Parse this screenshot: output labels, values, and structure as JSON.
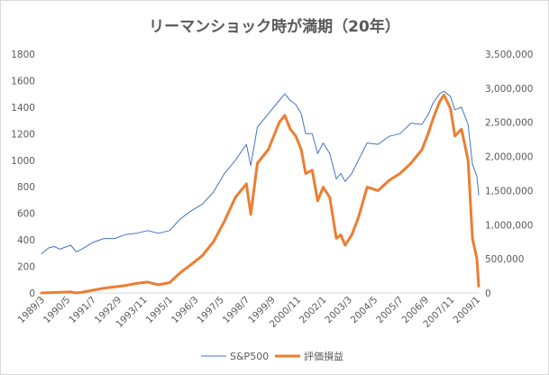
{
  "chart_data": {
    "type": "line",
    "title": "リーマンショック時が満期（20年）",
    "left_axis": {
      "range": [
        0,
        1800
      ],
      "ticks": [
        "0",
        "200",
        "400",
        "600",
        "800",
        "1000",
        "1200",
        "1400",
        "1600",
        "1800"
      ],
      "color": "#4472C4"
    },
    "right_axis": {
      "range": [
        0,
        3500000
      ],
      "ticks": [
        "0",
        "500,000",
        "1,000,000",
        "1,500,000",
        "2,000,000",
        "2,500,000",
        "3,000,000",
        "3,500,000"
      ],
      "color": "#ED7D31"
    },
    "x_range": [
      1989.167,
      2009.083
    ],
    "x_tick_labels": [
      {
        "t": 1989.167,
        "label": "1989/3"
      },
      {
        "t": 1990.333,
        "label": "1990/5"
      },
      {
        "t": 1991.5,
        "label": "1991/7"
      },
      {
        "t": 1992.667,
        "label": "1992/9"
      },
      {
        "t": 1993.833,
        "label": "1993/11"
      },
      {
        "t": 1995.0,
        "label": "1995/1"
      },
      {
        "t": 1996.167,
        "label": "1996/3"
      },
      {
        "t": 1997.333,
        "label": "1997/5"
      },
      {
        "t": 1998.5,
        "label": "1998/7"
      },
      {
        "t": 1999.667,
        "label": "1999/9"
      },
      {
        "t": 2000.833,
        "label": "2000/11"
      },
      {
        "t": 2002.0,
        "label": "2002/1"
      },
      {
        "t": 2003.167,
        "label": "2003/3"
      },
      {
        "t": 2004.333,
        "label": "2004/5"
      },
      {
        "t": 2005.5,
        "label": "2005/7"
      },
      {
        "t": 2006.667,
        "label": "2006/9"
      },
      {
        "t": 2007.833,
        "label": "2007/11"
      },
      {
        "t": 2009.0,
        "label": "2009/1"
      }
    ],
    "grid": false,
    "legend_position": "bottom",
    "series": [
      {
        "name": "S&P500",
        "axis": "left",
        "color": "#4472C4",
        "points": [
          [
            1989.167,
            295
          ],
          [
            1989.5,
            340
          ],
          [
            1989.75,
            350
          ],
          [
            1990.0,
            330
          ],
          [
            1990.5,
            360
          ],
          [
            1990.75,
            310
          ],
          [
            1991.0,
            330
          ],
          [
            1991.5,
            380
          ],
          [
            1992.0,
            410
          ],
          [
            1992.5,
            410
          ],
          [
            1993.0,
            440
          ],
          [
            1993.5,
            450
          ],
          [
            1994.0,
            470
          ],
          [
            1994.5,
            450
          ],
          [
            1995.0,
            470
          ],
          [
            1995.5,
            560
          ],
          [
            1996.0,
            620
          ],
          [
            1996.5,
            670
          ],
          [
            1997.0,
            760
          ],
          [
            1997.5,
            900
          ],
          [
            1998.0,
            1000
          ],
          [
            1998.5,
            1120
          ],
          [
            1998.7,
            960
          ],
          [
            1999.0,
            1250
          ],
          [
            1999.5,
            1350
          ],
          [
            2000.0,
            1450
          ],
          [
            2000.25,
            1500
          ],
          [
            2000.5,
            1450
          ],
          [
            2000.75,
            1420
          ],
          [
            2001.0,
            1350
          ],
          [
            2001.2,
            1200
          ],
          [
            2001.5,
            1200
          ],
          [
            2001.75,
            1050
          ],
          [
            2002.0,
            1130
          ],
          [
            2002.3,
            1050
          ],
          [
            2002.6,
            860
          ],
          [
            2002.8,
            900
          ],
          [
            2003.0,
            840
          ],
          [
            2003.3,
            900
          ],
          [
            2003.6,
            1000
          ],
          [
            2004.0,
            1130
          ],
          [
            2004.5,
            1120
          ],
          [
            2005.0,
            1180
          ],
          [
            2005.5,
            1200
          ],
          [
            2006.0,
            1280
          ],
          [
            2006.5,
            1270
          ],
          [
            2006.8,
            1350
          ],
          [
            2007.0,
            1430
          ],
          [
            2007.3,
            1500
          ],
          [
            2007.5,
            1520
          ],
          [
            2007.8,
            1480
          ],
          [
            2008.0,
            1380
          ],
          [
            2008.3,
            1400
          ],
          [
            2008.6,
            1270
          ],
          [
            2008.8,
            970
          ],
          [
            2009.0,
            880
          ],
          [
            2009.083,
            740
          ]
        ]
      },
      {
        "name": "評価損益",
        "axis": "right",
        "color": "#ED7D31",
        "points": [
          [
            1989.167,
            0
          ],
          [
            1990.0,
            10000
          ],
          [
            1990.5,
            15000
          ],
          [
            1990.75,
            0
          ],
          [
            1991.0,
            10000
          ],
          [
            1991.5,
            40000
          ],
          [
            1992.0,
            70000
          ],
          [
            1992.5,
            90000
          ],
          [
            1993.0,
            110000
          ],
          [
            1993.5,
            140000
          ],
          [
            1994.0,
            160000
          ],
          [
            1994.5,
            120000
          ],
          [
            1995.0,
            150000
          ],
          [
            1995.5,
            300000
          ],
          [
            1996.0,
            420000
          ],
          [
            1996.5,
            550000
          ],
          [
            1997.0,
            750000
          ],
          [
            1997.5,
            1050000
          ],
          [
            1998.0,
            1400000
          ],
          [
            1998.5,
            1600000
          ],
          [
            1998.7,
            1150000
          ],
          [
            1999.0,
            1900000
          ],
          [
            1999.5,
            2100000
          ],
          [
            2000.0,
            2500000
          ],
          [
            2000.25,
            2600000
          ],
          [
            2000.5,
            2400000
          ],
          [
            2000.75,
            2300000
          ],
          [
            2001.0,
            2100000
          ],
          [
            2001.2,
            1750000
          ],
          [
            2001.5,
            1800000
          ],
          [
            2001.75,
            1350000
          ],
          [
            2002.0,
            1550000
          ],
          [
            2002.3,
            1400000
          ],
          [
            2002.6,
            800000
          ],
          [
            2002.8,
            850000
          ],
          [
            2003.0,
            700000
          ],
          [
            2003.3,
            850000
          ],
          [
            2003.6,
            1100000
          ],
          [
            2004.0,
            1550000
          ],
          [
            2004.5,
            1500000
          ],
          [
            2005.0,
            1650000
          ],
          [
            2005.5,
            1750000
          ],
          [
            2006.0,
            1900000
          ],
          [
            2006.5,
            2100000
          ],
          [
            2006.8,
            2350000
          ],
          [
            2007.0,
            2550000
          ],
          [
            2007.3,
            2800000
          ],
          [
            2007.5,
            2900000
          ],
          [
            2007.8,
            2700000
          ],
          [
            2008.0,
            2300000
          ],
          [
            2008.3,
            2400000
          ],
          [
            2008.6,
            1950000
          ],
          [
            2008.8,
            800000
          ],
          [
            2009.0,
            500000
          ],
          [
            2009.083,
            100000
          ]
        ]
      }
    ]
  }
}
